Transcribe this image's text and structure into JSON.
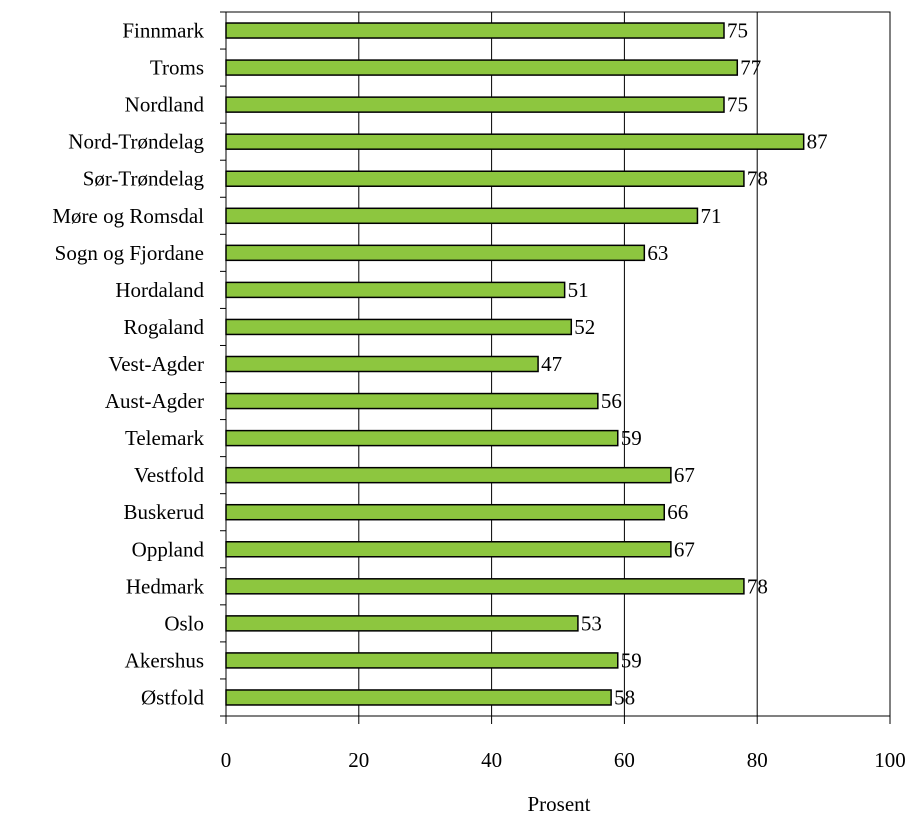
{
  "chart_data": {
    "type": "bar",
    "orientation": "horizontal",
    "categories": [
      "Finnmark",
      "Troms",
      "Nordland",
      "Nord-Trøndelag",
      "Sør-Trøndelag",
      "Møre og Romsdal",
      "Sogn og Fjordane",
      "Hordaland",
      "Rogaland",
      "Vest-Agder",
      "Aust-Agder",
      "Telemark",
      "Vestfold",
      "Buskerud",
      "Oppland",
      "Hedmark",
      "Oslo",
      "Akershus",
      "Østfold"
    ],
    "values": [
      75,
      77,
      75,
      87,
      78,
      71,
      63,
      51,
      52,
      47,
      56,
      59,
      67,
      66,
      67,
      78,
      53,
      59,
      58
    ],
    "xlabel": "Prosent",
    "ylabel": "",
    "xlim": [
      0,
      100
    ],
    "xticks": [
      "0",
      "20",
      "40",
      "60",
      "80",
      "100"
    ],
    "grid": true,
    "legend": "none",
    "bar_color": "#8dc63f"
  }
}
